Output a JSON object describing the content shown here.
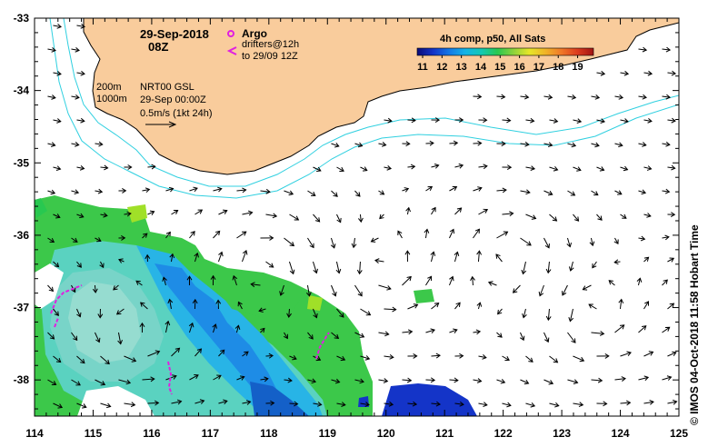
{
  "title": {
    "date": "29-Sep-2018",
    "hour": "08Z"
  },
  "legend": {
    "argo_label": "Argo",
    "drifters_label": "drifters@12h",
    "drifters_to": "to 29/09 12Z",
    "contour_200": "200m",
    "contour_1000": "1000m",
    "product": "NRT00 GSL",
    "product_time": "29-Sep 00:00Z",
    "arrow_scale": "0.5m/s (1kt 24h)",
    "argo_color": "#e020e0",
    "drifter_color": "#e020e0",
    "current_color": "#000000",
    "contour_color": "#30d0e0"
  },
  "colorbar": {
    "title": "4h comp, p50, All Sats",
    "ticks": [
      "11",
      "12",
      "13",
      "14",
      "15",
      "16",
      "17",
      "18",
      "19"
    ],
    "colors": [
      "#0c0c78",
      "#1434c8",
      "#1478e6",
      "#14b4e6",
      "#14c8b4",
      "#28c850",
      "#8cd23c",
      "#e6e628",
      "#f0b428",
      "#f07828",
      "#dc3c1e",
      "#a01414"
    ]
  },
  "axes": {
    "x_ticks": [
      "114",
      "115",
      "116",
      "117",
      "118",
      "119",
      "120",
      "121",
      "122",
      "123",
      "124",
      "125"
    ],
    "y_ticks": [
      "-33",
      "-34",
      "-35",
      "-36",
      "-37",
      "-38"
    ],
    "lon_range": [
      114,
      125
    ],
    "lat_range": [
      -38.5,
      -33
    ]
  },
  "colors": {
    "land": "#f9cc9c",
    "ocean": "#ffffff"
  },
  "credit": "© IMOS 04-Oct-2018 11:58 Hobart Time"
}
